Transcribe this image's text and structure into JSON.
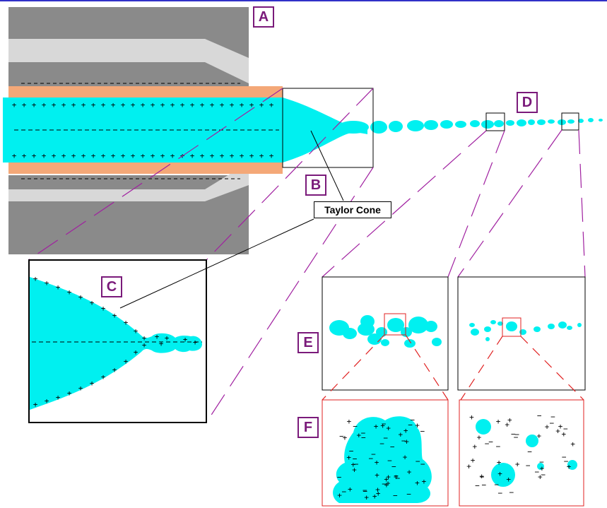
{
  "labels": {
    "A": "A",
    "B": "B",
    "C": "C",
    "D": "D",
    "E": "E",
    "F": "F"
  },
  "callout": "Taylor Cone",
  "colors": {
    "fluid": "#00f0f0",
    "sheath": "#f4a878",
    "nozzle_dark": "#8a8a8a",
    "nozzle_light": "#d8d8d8",
    "label": "#7a1a7a",
    "guide_purple": "#a020a0",
    "guide_red": "#e02020",
    "frame": "#000000",
    "frame_red": "#e02020"
  },
  "charge_symbols": {
    "positive": "+",
    "negative": "−"
  }
}
